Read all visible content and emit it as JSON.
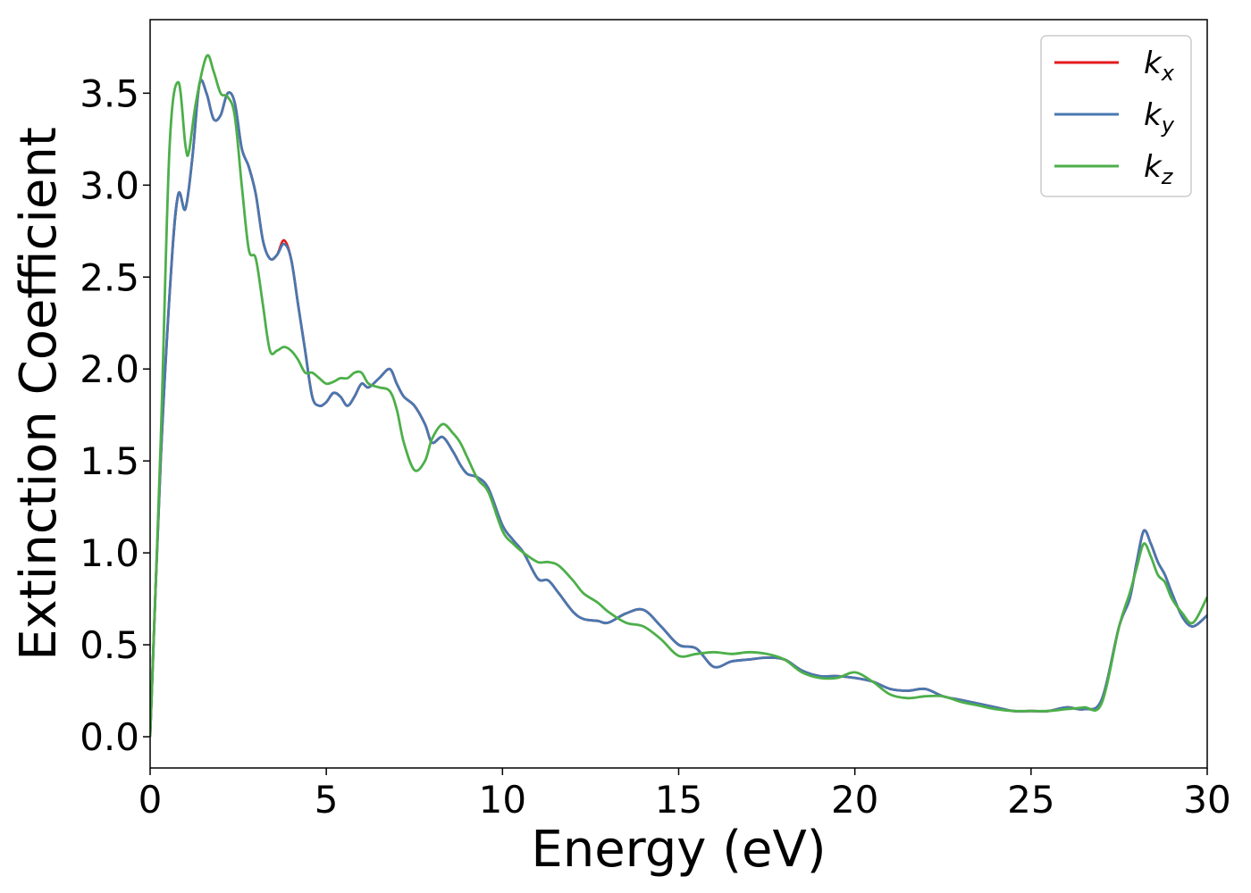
{
  "chart_data": {
    "type": "line",
    "title": "",
    "xlabel": "Energy (eV)",
    "ylabel": "Extinction Coefficient",
    "xlim": [
      0,
      30
    ],
    "ylim": [
      -0.17,
      3.9
    ],
    "xticks": [
      0,
      5,
      10,
      15,
      20,
      25,
      30
    ],
    "xtick_labels": [
      "0",
      "5",
      "10",
      "15",
      "20",
      "25",
      "30"
    ],
    "yticks": [
      0.0,
      0.5,
      1.0,
      1.5,
      2.0,
      2.5,
      3.0,
      3.5
    ],
    "ytick_labels": [
      "0.0",
      "0.5",
      "1.0",
      "1.5",
      "2.0",
      "2.5",
      "3.0",
      "3.5"
    ],
    "grid": false,
    "legend_position": "top-right",
    "series": [
      {
        "name": "k",
        "subscript": "x",
        "color": "#e41a1c",
        "x": [
          0,
          0.3,
          0.6,
          0.8,
          1.0,
          1.2,
          1.4,
          1.6,
          1.8,
          2.0,
          2.2,
          2.4,
          2.6,
          2.8,
          3.0,
          3.2,
          3.4,
          3.6,
          3.8,
          4.0,
          4.2,
          4.4,
          4.6,
          4.8,
          5.0,
          5.2,
          5.4,
          5.6,
          5.8,
          6.0,
          6.2,
          6.5,
          6.8,
          7.0,
          7.2,
          7.5,
          7.8,
          8.0,
          8.3,
          8.6,
          8.8,
          9.0,
          9.3,
          9.6,
          10.0,
          10.3,
          10.6,
          11.0,
          11.3,
          11.6,
          12.0,
          12.3,
          12.7,
          13.0,
          13.5,
          14.0,
          14.5,
          15.0,
          15.5,
          16.0,
          16.5,
          17.0,
          17.5,
          18.0,
          18.5,
          19.0,
          19.5,
          20.0,
          20.5,
          21.0,
          21.5,
          22.0,
          22.5,
          23.0,
          23.5,
          24.0,
          24.5,
          25.0,
          25.5,
          26.0,
          26.5,
          27.0,
          27.5,
          27.8,
          28.0,
          28.2,
          28.4,
          28.6,
          28.8,
          29.0,
          29.3,
          29.6,
          30.0
        ],
        "y": [
          0.0,
          1.5,
          2.55,
          2.95,
          2.87,
          3.15,
          3.55,
          3.5,
          3.36,
          3.38,
          3.5,
          3.45,
          3.2,
          3.1,
          2.95,
          2.7,
          2.6,
          2.62,
          2.7,
          2.6,
          2.35,
          2.1,
          1.85,
          1.8,
          1.82,
          1.87,
          1.85,
          1.8,
          1.85,
          1.92,
          1.9,
          1.95,
          2.0,
          1.92,
          1.85,
          1.8,
          1.7,
          1.6,
          1.63,
          1.55,
          1.48,
          1.43,
          1.41,
          1.35,
          1.15,
          1.07,
          1.0,
          0.86,
          0.85,
          0.78,
          0.68,
          0.64,
          0.63,
          0.62,
          0.67,
          0.69,
          0.6,
          0.5,
          0.48,
          0.38,
          0.41,
          0.42,
          0.43,
          0.42,
          0.36,
          0.33,
          0.33,
          0.32,
          0.3,
          0.26,
          0.25,
          0.26,
          0.22,
          0.2,
          0.18,
          0.16,
          0.14,
          0.14,
          0.14,
          0.16,
          0.15,
          0.2,
          0.6,
          0.75,
          0.95,
          1.12,
          1.05,
          0.95,
          0.88,
          0.78,
          0.65,
          0.6,
          0.66
        ]
      },
      {
        "name": "k",
        "subscript": "y",
        "color": "#4878b0",
        "x": [
          0,
          0.3,
          0.6,
          0.8,
          1.0,
          1.2,
          1.4,
          1.6,
          1.8,
          2.0,
          2.2,
          2.4,
          2.6,
          2.8,
          3.0,
          3.2,
          3.4,
          3.6,
          3.8,
          4.0,
          4.2,
          4.4,
          4.6,
          4.8,
          5.0,
          5.2,
          5.4,
          5.6,
          5.8,
          6.0,
          6.2,
          6.5,
          6.8,
          7.0,
          7.2,
          7.5,
          7.8,
          8.0,
          8.3,
          8.6,
          8.8,
          9.0,
          9.3,
          9.6,
          10.0,
          10.3,
          10.6,
          11.0,
          11.3,
          11.6,
          12.0,
          12.3,
          12.7,
          13.0,
          13.5,
          14.0,
          14.5,
          15.0,
          15.5,
          16.0,
          16.5,
          17.0,
          17.5,
          18.0,
          18.5,
          19.0,
          19.5,
          20.0,
          20.5,
          21.0,
          21.5,
          22.0,
          22.5,
          23.0,
          23.5,
          24.0,
          24.5,
          25.0,
          25.5,
          26.0,
          26.5,
          27.0,
          27.5,
          27.8,
          28.0,
          28.2,
          28.4,
          28.6,
          28.8,
          29.0,
          29.3,
          29.6,
          30.0
        ],
        "y": [
          0.0,
          1.5,
          2.55,
          2.95,
          2.87,
          3.15,
          3.55,
          3.5,
          3.36,
          3.38,
          3.5,
          3.45,
          3.2,
          3.1,
          2.95,
          2.7,
          2.6,
          2.62,
          2.68,
          2.6,
          2.35,
          2.1,
          1.85,
          1.8,
          1.82,
          1.87,
          1.85,
          1.8,
          1.85,
          1.92,
          1.9,
          1.95,
          2.0,
          1.92,
          1.85,
          1.8,
          1.7,
          1.6,
          1.63,
          1.55,
          1.48,
          1.43,
          1.41,
          1.35,
          1.15,
          1.07,
          1.0,
          0.86,
          0.85,
          0.78,
          0.68,
          0.64,
          0.63,
          0.62,
          0.67,
          0.69,
          0.6,
          0.5,
          0.48,
          0.38,
          0.41,
          0.42,
          0.43,
          0.42,
          0.36,
          0.33,
          0.33,
          0.32,
          0.3,
          0.26,
          0.25,
          0.26,
          0.22,
          0.2,
          0.18,
          0.16,
          0.14,
          0.14,
          0.14,
          0.16,
          0.15,
          0.2,
          0.6,
          0.75,
          0.95,
          1.12,
          1.05,
          0.95,
          0.88,
          0.78,
          0.65,
          0.6,
          0.66
        ]
      },
      {
        "name": "k",
        "subscript": "z",
        "color": "#4daf4a",
        "x": [
          0,
          0.3,
          0.55,
          0.8,
          1.0,
          1.1,
          1.3,
          1.6,
          1.8,
          2.0,
          2.2,
          2.4,
          2.6,
          2.8,
          3.0,
          3.2,
          3.4,
          3.6,
          3.8,
          4.0,
          4.2,
          4.4,
          4.6,
          4.8,
          5.0,
          5.2,
          5.4,
          5.6,
          5.8,
          6.0,
          6.2,
          6.5,
          6.8,
          7.0,
          7.2,
          7.5,
          7.8,
          8.0,
          8.3,
          8.6,
          8.8,
          9.0,
          9.3,
          9.6,
          10.0,
          10.3,
          10.6,
          11.0,
          11.3,
          11.6,
          12.0,
          12.3,
          12.7,
          13.0,
          13.5,
          14.0,
          14.5,
          15.0,
          15.5,
          16.0,
          16.5,
          17.0,
          17.5,
          18.0,
          18.5,
          19.0,
          19.5,
          20.0,
          20.5,
          21.0,
          21.5,
          22.0,
          22.5,
          23.0,
          23.5,
          24.0,
          24.5,
          25.0,
          25.5,
          26.0,
          26.5,
          27.0,
          27.5,
          27.8,
          28.0,
          28.2,
          28.4,
          28.6,
          28.8,
          29.0,
          29.3,
          29.6,
          30.0
        ],
        "y": [
          0.0,
          1.6,
          3.2,
          3.56,
          3.22,
          3.18,
          3.45,
          3.7,
          3.62,
          3.5,
          3.48,
          3.38,
          3.0,
          2.65,
          2.6,
          2.35,
          2.1,
          2.1,
          2.12,
          2.1,
          2.05,
          1.98,
          1.98,
          1.95,
          1.92,
          1.93,
          1.95,
          1.95,
          1.98,
          1.98,
          1.92,
          1.9,
          1.88,
          1.78,
          1.6,
          1.45,
          1.5,
          1.62,
          1.7,
          1.65,
          1.6,
          1.52,
          1.4,
          1.33,
          1.12,
          1.05,
          1.0,
          0.95,
          0.95,
          0.93,
          0.85,
          0.78,
          0.73,
          0.68,
          0.62,
          0.6,
          0.53,
          0.44,
          0.45,
          0.46,
          0.45,
          0.46,
          0.45,
          0.42,
          0.35,
          0.32,
          0.32,
          0.35,
          0.3,
          0.23,
          0.21,
          0.22,
          0.22,
          0.19,
          0.17,
          0.15,
          0.14,
          0.14,
          0.14,
          0.15,
          0.16,
          0.18,
          0.6,
          0.78,
          0.92,
          1.05,
          0.98,
          0.88,
          0.84,
          0.75,
          0.67,
          0.62,
          0.76
        ]
      }
    ]
  }
}
